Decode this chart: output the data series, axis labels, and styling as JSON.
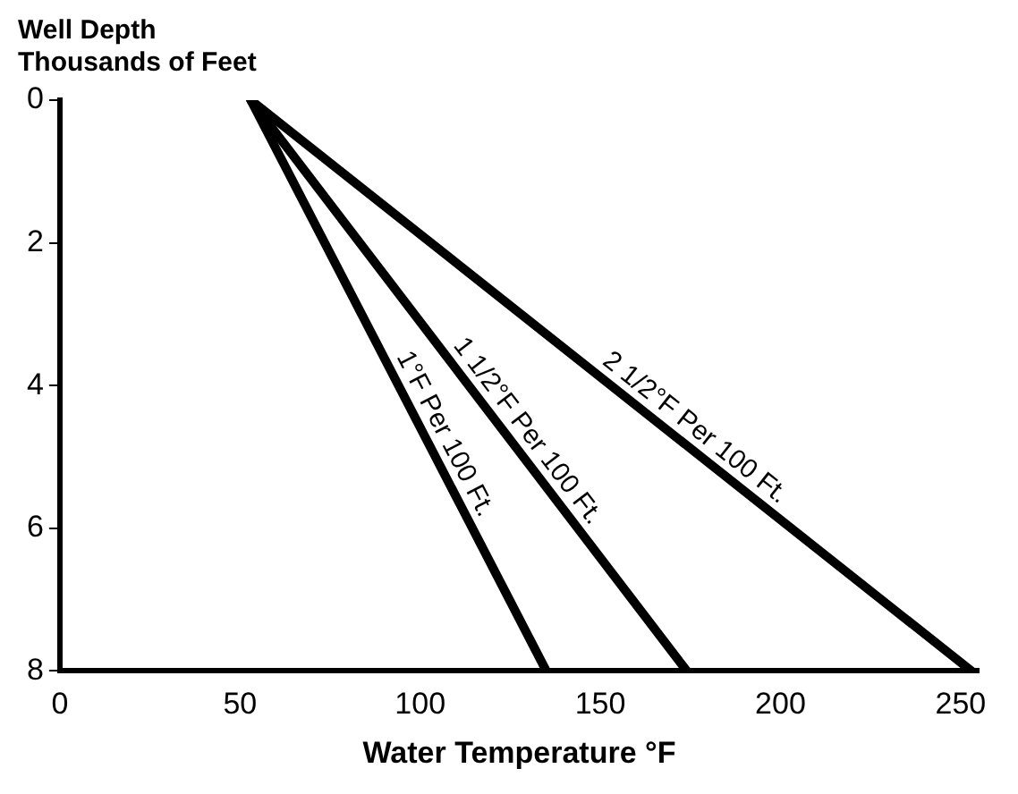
{
  "chart_data": {
    "type": "line",
    "ylabel": "Well Depth\nThousands of Feet",
    "xlabel": "Water Temperature °F",
    "xlim": [
      0,
      255
    ],
    "xticks": [
      0,
      50,
      100,
      150,
      200,
      250
    ],
    "ylim": [
      8,
      0
    ],
    "yticks": [
      0,
      2,
      4,
      6,
      8
    ],
    "grid": false,
    "legend": false,
    "marker": "none",
    "line_style": "solid",
    "series": [
      {
        "name": "1°F Per 100 Ft.",
        "color": "#000000",
        "x": [
          53,
          135
        ],
        "values": [
          0,
          8
        ]
      },
      {
        "name": "1 1/2°F Per 100 Ft.",
        "color": "#000000",
        "x": [
          53,
          174
        ],
        "values": [
          0,
          8
        ]
      },
      {
        "name": "2 1/2°F Per 100 Ft.",
        "color": "#000000",
        "x": [
          53,
          253
        ],
        "values": [
          0,
          8
        ]
      }
    ]
  }
}
